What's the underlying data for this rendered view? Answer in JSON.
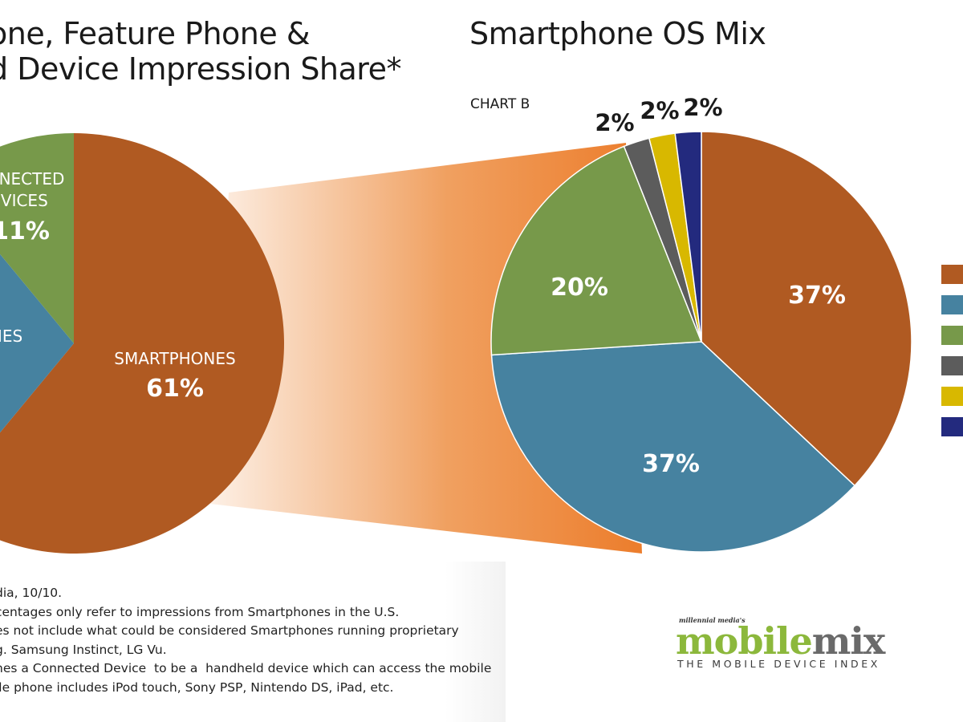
{
  "header": {
    "title_a": "one, Feature Phone &\nd Device Impression Share*",
    "title_b": "Smartphone OS Mix",
    "chart_b_label": "CHART B"
  },
  "chart_data": [
    {
      "type": "pie",
      "title": "one, Feature Phone & d Device Impression Share*",
      "slices": [
        {
          "label": "SMARTPHONES",
          "value": 61,
          "display": "61%",
          "color": "#b05a22"
        },
        {
          "label": "NES",
          "value": 28,
          "display": "",
          "color": "#4682a0"
        },
        {
          "label": "NNECTED EVICES",
          "value": 11,
          "display": "11%",
          "color": "#77994a"
        }
      ]
    },
    {
      "type": "pie",
      "title": "Smartphone OS Mix",
      "subtitle": "CHART B",
      "slices": [
        {
          "value": 37,
          "display": "37%",
          "color": "#b05a22"
        },
        {
          "value": 37,
          "display": "37%",
          "color": "#4682a0"
        },
        {
          "value": 20,
          "display": "20%",
          "color": "#77994a"
        },
        {
          "value": 2,
          "display": "2%",
          "color": "#5c5c5c"
        },
        {
          "value": 2,
          "display": "2%",
          "color": "#d8b800"
        },
        {
          "value": 2,
          "display": "2%",
          "color": "#232a7e"
        }
      ]
    }
  ],
  "notes": [
    "dia, 10/10.",
    "centages only refer to impressions from Smartphones in the U.S.",
    "es not include what could be considered Smartphones running proprietary",
    "g. Samsung Instinct, LG Vu.",
    "nes a Connected Device  to be a  handheld device which can access the mobile",
    "ile phone includes iPod touch, Sony PSP, Nintendo DS, iPad, etc."
  ],
  "logo": {
    "small": "millennial media's",
    "main_a": "mobile",
    "main_b": "mix",
    "sub": "THE MOBILE DEVICE INDEX"
  }
}
